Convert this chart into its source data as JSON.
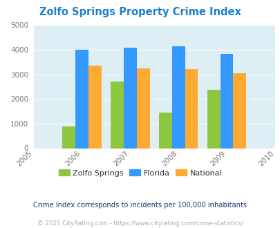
{
  "title": "Zolfo Springs Property Crime Index",
  "title_color": "#1a80cc",
  "years": [
    2005,
    2006,
    2007,
    2008,
    2009,
    2010
  ],
  "bar_years": [
    2006,
    2007,
    2008,
    2009
  ],
  "zolfo_springs": [
    880,
    2700,
    1450,
    2370
  ],
  "florida": [
    3990,
    4080,
    4150,
    3830
  ],
  "national": [
    3340,
    3240,
    3210,
    3040
  ],
  "zolfo_color": "#8dc63f",
  "florida_color": "#3399ff",
  "national_color": "#ffaa33",
  "bg_color": "#ddeef5",
  "ylim": [
    0,
    5000
  ],
  "yticks": [
    0,
    1000,
    2000,
    3000,
    4000,
    5000
  ],
  "legend_labels": [
    "Zolfo Springs",
    "Florida",
    "National"
  ],
  "footnote1": "Crime Index corresponds to incidents per 100,000 inhabitants",
  "footnote2": "© 2025 CityRating.com - https://www.cityrating.com/crime-statistics/",
  "footnote1_color": "#1a3a6e",
  "footnote2_color": "#aaaaaa"
}
